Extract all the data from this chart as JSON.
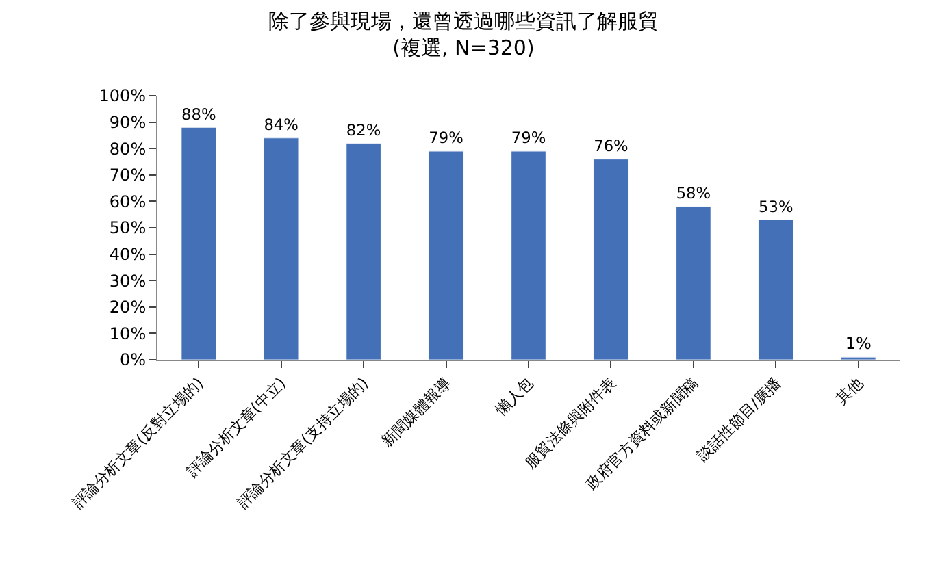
{
  "chart_data": {
    "type": "bar",
    "title": "除了參與現場，還曾透過哪些資訊了解服貿",
    "subtitle": "(複選, N=320)",
    "categories": [
      "評論分析文章(反對立場的)",
      "評論分析文章(中立)",
      "評論分析文章(支持立場的)",
      "新聞媒體報導",
      "懶人包",
      "服貿法條與附件表",
      "政府官方資料或新聞稿",
      "談話性節目/廣播",
      "其他"
    ],
    "values": [
      88,
      84,
      82,
      79,
      79,
      76,
      58,
      53,
      1
    ],
    "color": "#4470b8",
    "value_labels": [
      "88%",
      "84%",
      "82%",
      "79%",
      "79%",
      "76%",
      "58%",
      "53%",
      "1%"
    ],
    "ylim": [
      0,
      100
    ],
    "yticks": [
      {
        "value": 0,
        "label": "0%"
      },
      {
        "value": 10,
        "label": "10%"
      },
      {
        "value": 20,
        "label": "20%"
      },
      {
        "value": 30,
        "label": "30%"
      },
      {
        "value": 40,
        "label": "40%"
      },
      {
        "value": 50,
        "label": "50%"
      },
      {
        "value": 60,
        "label": "60%"
      },
      {
        "value": 70,
        "label": "70%"
      },
      {
        "value": 80,
        "label": "80%"
      },
      {
        "value": 90,
        "label": "90%"
      },
      {
        "value": 100,
        "label": "100%"
      }
    ],
    "grid": false
  }
}
